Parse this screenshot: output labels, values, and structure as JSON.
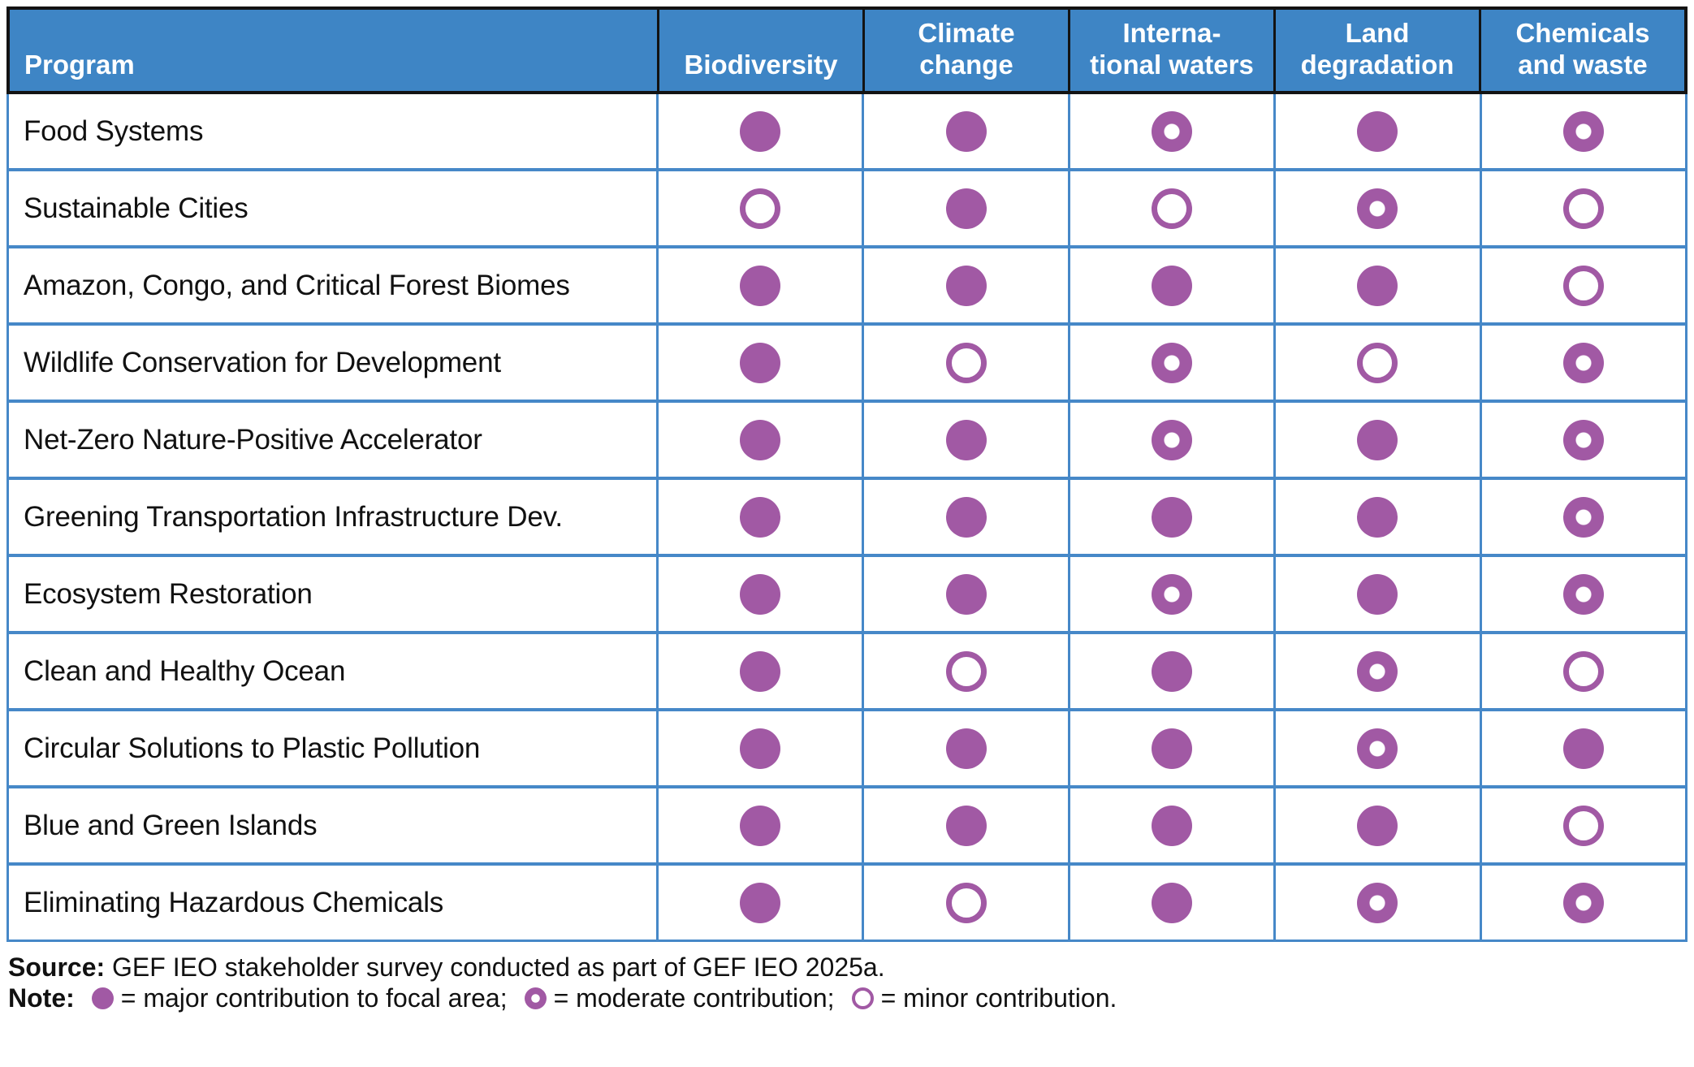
{
  "chart_data": {
    "type": "table",
    "columns": [
      "Program",
      "Biodiversity",
      "Climate change",
      "International waters",
      "Land degradation",
      "Chemicals and waste"
    ],
    "column_display": [
      "Program",
      "Biodiversity",
      "Climate\nchange",
      "Interna-\ntional waters",
      "Land\ndegradation",
      "Chemicals\nand waste"
    ],
    "rows": [
      {
        "program": "Food Systems",
        "cells": [
          "major",
          "major",
          "moderate",
          "major",
          "moderate"
        ]
      },
      {
        "program": "Sustainable Cities",
        "cells": [
          "minor",
          "major",
          "minor",
          "moderate",
          "minor"
        ]
      },
      {
        "program": "Amazon, Congo, and Critical Forest Biomes",
        "cells": [
          "major",
          "major",
          "major",
          "major",
          "minor"
        ]
      },
      {
        "program": "Wildlife Conservation for Development",
        "cells": [
          "major",
          "minor",
          "moderate",
          "minor",
          "moderate"
        ]
      },
      {
        "program": "Net-Zero Nature-Positive Accelerator",
        "cells": [
          "major",
          "major",
          "moderate",
          "major",
          "moderate"
        ]
      },
      {
        "program": "Greening Transportation Infrastructure Dev.",
        "cells": [
          "major",
          "major",
          "major",
          "major",
          "moderate"
        ]
      },
      {
        "program": "Ecosystem Restoration",
        "cells": [
          "major",
          "major",
          "moderate",
          "major",
          "moderate"
        ]
      },
      {
        "program": "Clean and Healthy Ocean",
        "cells": [
          "major",
          "minor",
          "major",
          "moderate",
          "minor"
        ]
      },
      {
        "program": "Circular Solutions to Plastic Pollution",
        "cells": [
          "major",
          "major",
          "major",
          "moderate",
          "major"
        ]
      },
      {
        "program": "Blue and Green Islands",
        "cells": [
          "major",
          "major",
          "major",
          "major",
          "minor"
        ]
      },
      {
        "program": "Eliminating Hazardous Chemicals",
        "cells": [
          "major",
          "minor",
          "major",
          "moderate",
          "moderate"
        ]
      }
    ],
    "legend": {
      "major": "major contribution to focal area",
      "moderate": "moderate contribution",
      "minor": "minor contribution"
    }
  },
  "footer": {
    "source_label": "Source:",
    "source_text": "GEF IEO stakeholder survey conducted as part of GEF IEO 2025a.",
    "note_label": "Note:",
    "note_major": "= major contribution to focal area;",
    "note_moderate": "= moderate contribution;",
    "note_minor": "= minor contribution."
  },
  "colors": {
    "header_bg": "#3e85c5",
    "border_blue": "#4688c8",
    "header_border_black": "#131313",
    "dot_purple": "#a159a4",
    "header_text": "#ffffff",
    "body_text": "#111111"
  }
}
